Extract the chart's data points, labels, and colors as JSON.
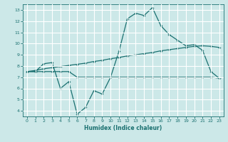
{
  "title": "",
  "xlabel": "Humidex (Indice chaleur)",
  "bg_color": "#cce8e8",
  "grid_color": "#ffffff",
  "line_color": "#1a7070",
  "xlim": [
    -0.5,
    23.5
  ],
  "ylim": [
    3.5,
    13.5
  ],
  "xticks": [
    0,
    1,
    2,
    3,
    4,
    5,
    6,
    7,
    8,
    9,
    10,
    11,
    12,
    13,
    14,
    15,
    16,
    17,
    18,
    19,
    20,
    21,
    22,
    23
  ],
  "yticks": [
    4,
    5,
    6,
    7,
    8,
    9,
    10,
    11,
    12,
    13
  ],
  "line1_x": [
    0,
    1,
    2,
    3,
    4,
    5,
    6,
    7,
    8,
    9,
    10,
    11,
    12,
    13,
    14,
    15,
    16,
    17,
    18,
    19,
    20,
    21,
    22,
    23
  ],
  "line1_y": [
    7.5,
    7.5,
    8.2,
    8.3,
    6.0,
    6.6,
    3.7,
    4.3,
    5.8,
    5.5,
    7.0,
    9.3,
    12.2,
    12.7,
    12.5,
    13.2,
    11.6,
    10.8,
    10.3,
    9.8,
    9.9,
    9.4,
    7.5,
    6.9
  ],
  "line2_x": [
    0,
    1,
    2,
    3,
    4,
    5,
    6,
    7,
    8,
    9,
    10,
    11,
    12,
    13,
    14,
    15,
    16,
    17,
    18,
    19,
    20,
    21,
    22,
    23
  ],
  "line2_y": [
    7.5,
    7.5,
    7.5,
    7.5,
    7.5,
    7.5,
    7.0,
    7.0,
    7.0,
    7.0,
    7.0,
    7.0,
    7.0,
    7.0,
    7.0,
    7.0,
    7.0,
    7.0,
    7.0,
    7.0,
    7.0,
    7.0,
    7.0,
    6.9
  ],
  "line3_x": [
    0,
    1,
    2,
    3,
    4,
    5,
    6,
    7,
    8,
    9,
    10,
    11,
    12,
    13,
    14,
    15,
    16,
    17,
    18,
    19,
    20,
    21,
    22,
    23
  ],
  "line3_y": [
    7.5,
    7.6,
    7.75,
    7.85,
    7.95,
    8.05,
    8.15,
    8.25,
    8.4,
    8.5,
    8.65,
    8.75,
    8.9,
    9.0,
    9.1,
    9.2,
    9.35,
    9.45,
    9.55,
    9.65,
    9.75,
    9.8,
    9.75,
    9.65
  ]
}
